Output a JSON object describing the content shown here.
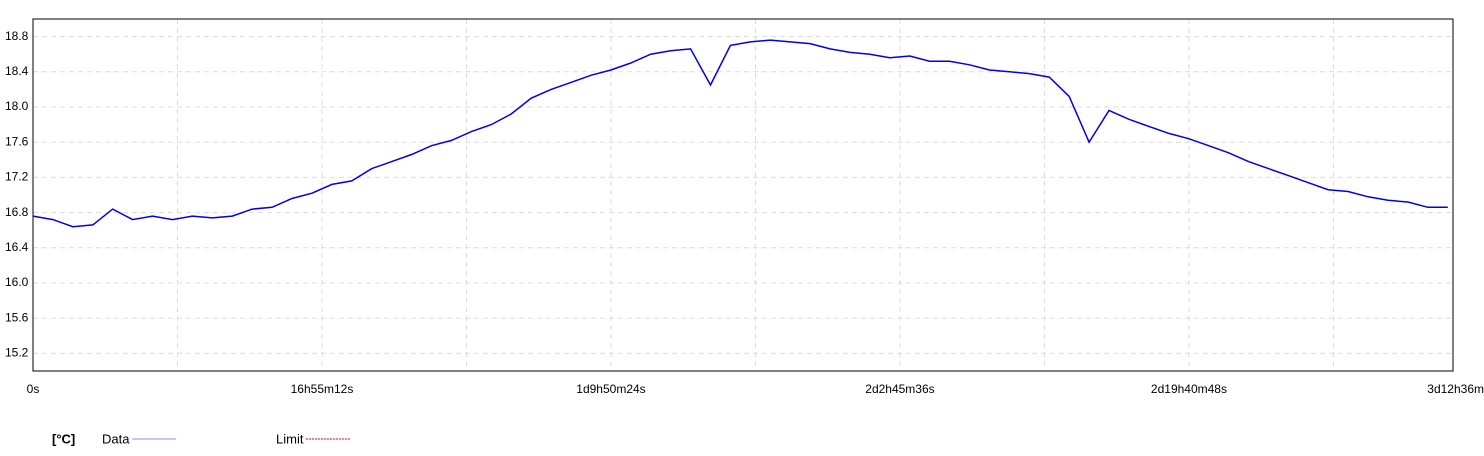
{
  "chart_data": {
    "type": "line",
    "y_label": "[°C]",
    "x": [
      0,
      4200,
      8400,
      12600,
      16800,
      21000,
      25200,
      29400,
      33600,
      37800,
      42000,
      46200,
      50400,
      54600,
      58800,
      63000,
      67200,
      71400,
      75600,
      79800,
      84000,
      88200,
      92400,
      96600,
      100800,
      105000,
      109200,
      113400,
      117600,
      121800,
      126000,
      130200,
      134400,
      138600,
      142800,
      147000,
      151200,
      155400,
      159600,
      163800,
      168000,
      172200,
      176400,
      180600,
      184800,
      189000,
      193200,
      197400,
      201600,
      205800,
      210000,
      214200,
      218400,
      222600,
      226800,
      231000,
      235200,
      239400,
      243600,
      247800,
      252000,
      256200,
      260400,
      264600,
      268800,
      273000,
      277200,
      281400,
      285600,
      289800,
      294000,
      298200
    ],
    "series": [
      {
        "name": "Data",
        "color": "#0000ee",
        "legend_color": "#8888ee",
        "values": [
          16.76,
          16.72,
          16.64,
          16.66,
          16.84,
          16.72,
          16.76,
          16.72,
          16.76,
          16.74,
          16.76,
          16.84,
          16.86,
          16.96,
          17.02,
          17.12,
          17.16,
          17.3,
          17.38,
          17.46,
          17.56,
          17.62,
          17.72,
          17.8,
          17.92,
          18.1,
          18.2,
          18.28,
          18.36,
          18.42,
          18.5,
          18.6,
          18.64,
          18.66,
          18.25,
          18.7,
          18.74,
          18.76,
          18.74,
          18.72,
          18.66,
          18.62,
          18.6,
          18.56,
          18.58,
          18.52,
          18.52,
          18.48,
          18.42,
          18.4,
          18.38,
          18.34,
          18.12,
          17.6,
          17.96,
          17.86,
          17.78,
          17.7,
          17.64,
          17.56,
          17.48,
          17.38,
          17.3,
          17.22,
          17.14,
          17.06,
          17.04,
          16.98,
          16.94,
          16.92,
          16.86,
          16.86
        ]
      },
      {
        "name": "Limit",
        "color": "#dd0000",
        "dashed": true,
        "values": [
          null,
          null,
          null,
          null,
          null,
          null,
          null,
          null,
          null,
          null,
          null,
          null,
          null,
          null,
          null,
          null,
          null,
          null,
          null,
          null,
          null,
          null,
          null,
          null,
          null,
          null,
          null,
          null,
          null,
          null,
          null,
          null,
          null,
          null,
          null,
          null,
          null,
          null,
          null,
          null,
          null,
          null,
          null,
          null,
          null,
          null,
          null,
          null,
          null,
          null,
          null,
          null,
          null,
          null,
          null,
          null,
          null,
          null,
          null,
          null,
          null,
          null,
          null,
          null,
          null,
          null,
          null,
          null,
          null,
          null,
          null,
          null
        ]
      }
    ],
    "xlim": [
      0,
      299300
    ],
    "xticks": [
      {
        "value": 0,
        "label": "0s"
      },
      {
        "value": 60912,
        "label": "16h55m12s"
      },
      {
        "value": 121824,
        "label": "1d9h50m24s"
      },
      {
        "value": 182736,
        "label": "2d2h45m36s"
      },
      {
        "value": 243648,
        "label": "2d19h40m48s"
      },
      {
        "value": 304560,
        "label": "3d12h36m"
      }
    ],
    "xminor_ticks": [
      30456,
      91368,
      152280,
      213192,
      274104
    ],
    "ylim": [
      15.0,
      19.0
    ],
    "yticks": [
      15.2,
      15.6,
      {
        "value": 16,
        "label": "16.0"
      },
      16.4,
      16.8,
      17.2,
      17.6,
      {
        "value": 18,
        "label": "18.0"
      },
      18.4,
      18.8
    ],
    "grid": true
  }
}
